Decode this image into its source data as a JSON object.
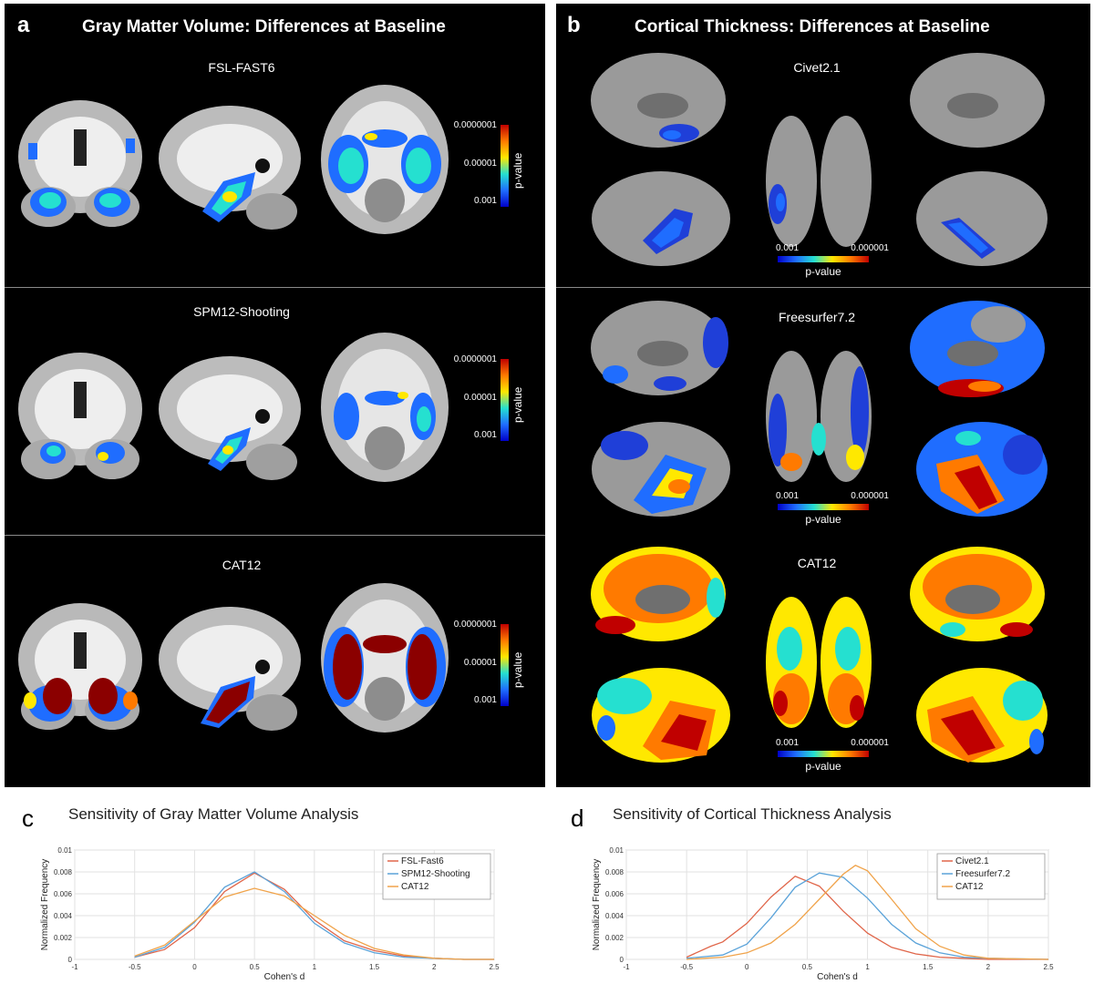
{
  "panel_a": {
    "label": "a",
    "title": "Gray Matter Volume: Differences at Baseline",
    "rows": [
      "FSL-FAST6",
      "SPM12-Shooting",
      "CAT12"
    ],
    "colorbar": {
      "ticks": [
        "0.0000001",
        "0.00001",
        "0.001"
      ],
      "label": "p-value"
    }
  },
  "panel_b": {
    "label": "b",
    "title": "Cortical Thickness: Differences at Baseline",
    "rows": [
      "Civet2.1",
      "Freesurfer7.2",
      "CAT12"
    ],
    "colorbar": {
      "low": "0.001",
      "high": "0.000001",
      "label": "p-value"
    }
  },
  "colors": {
    "significance_scale": [
      "#0000c8",
      "#1f6dff",
      "#25e0d0",
      "#ffe800",
      "#ff7a00",
      "#c00000"
    ],
    "brain_gray": "#9a9a9a"
  },
  "chart_data": [
    {
      "panel_label": "c",
      "type": "line",
      "title": "Sensitivity of Gray Matter Volume Analysis",
      "xlabel": "Cohen's d",
      "ylabel": "Normalized Frequency",
      "xlim": [
        -1,
        2.5
      ],
      "ylim": [
        0,
        0.01
      ],
      "xticks": [
        "-1",
        "-0.5",
        "0",
        "0.5",
        "1",
        "1.5",
        "2",
        "2.5"
      ],
      "yticks": [
        "0",
        "0.002",
        "0.004",
        "0.006",
        "0.008",
        "0.01"
      ],
      "grid": true,
      "legend_position": "top-right",
      "series": [
        {
          "name": "FSL-Fast6",
          "color": "#e0664a",
          "x": [
            -0.5,
            -0.25,
            0,
            0.25,
            0.5,
            0.75,
            1,
            1.25,
            1.5,
            1.75,
            2,
            2.25,
            2.5
          ],
          "y": [
            0.0002,
            0.0009,
            0.0029,
            0.0062,
            0.0079,
            0.0064,
            0.0036,
            0.0017,
            0.0008,
            0.0003,
            0.0001,
            0.0,
            0.0
          ]
        },
        {
          "name": "SPM12-Shooting",
          "color": "#5ba3d9",
          "x": [
            -0.5,
            -0.25,
            0,
            0.25,
            0.5,
            0.75,
            1,
            1.25,
            1.5,
            1.75,
            2,
            2.25,
            2.5
          ],
          "y": [
            0.0002,
            0.0011,
            0.0034,
            0.0066,
            0.008,
            0.0062,
            0.0033,
            0.0015,
            0.0006,
            0.0002,
            0.0001,
            0.0,
            0.0
          ]
        },
        {
          "name": "CAT12",
          "color": "#f0a34a",
          "x": [
            -0.5,
            -0.25,
            0,
            0.25,
            0.5,
            0.75,
            1,
            1.25,
            1.5,
            1.75,
            2,
            2.25,
            2.5
          ],
          "y": [
            0.0003,
            0.0013,
            0.0035,
            0.0057,
            0.0065,
            0.0058,
            0.004,
            0.0022,
            0.001,
            0.0004,
            0.0001,
            0.0,
            0.0
          ]
        }
      ]
    },
    {
      "panel_label": "d",
      "type": "line",
      "title": "Sensitivity of Cortical Thickness Analysis",
      "xlabel": "Cohen's d",
      "ylabel": "Normalized Frequency",
      "xlim": [
        -1,
        2.5
      ],
      "ylim": [
        0,
        0.01
      ],
      "xticks": [
        "-1",
        "-0.5",
        "0",
        "0.5",
        "1",
        "1.5",
        "2",
        "2.5"
      ],
      "yticks": [
        "0",
        "0.002",
        "0.004",
        "0.006",
        "0.008",
        "0.01"
      ],
      "grid": true,
      "legend_position": "top-right",
      "series": [
        {
          "name": "Civet2.1",
          "color": "#e0664a",
          "x": [
            -0.5,
            -0.3,
            -0.2,
            0,
            0.2,
            0.4,
            0.6,
            0.8,
            1,
            1.2,
            1.4,
            1.6,
            1.8,
            2,
            2.5
          ],
          "y": [
            0.0002,
            0.0012,
            0.0016,
            0.0033,
            0.0057,
            0.0076,
            0.0067,
            0.0044,
            0.0024,
            0.0011,
            0.0005,
            0.0002,
            0.0001,
            0.0,
            0.0
          ]
        },
        {
          "name": "Freesurfer7.2",
          "color": "#5ba3d9",
          "x": [
            -0.5,
            -0.2,
            0,
            0.2,
            0.4,
            0.6,
            0.8,
            1,
            1.2,
            1.4,
            1.6,
            1.8,
            2,
            2.5
          ],
          "y": [
            0.0001,
            0.0004,
            0.0014,
            0.0038,
            0.0066,
            0.0079,
            0.0075,
            0.0056,
            0.0032,
            0.0015,
            0.0006,
            0.0002,
            0.0001,
            0.0
          ]
        },
        {
          "name": "CAT12",
          "color": "#f0a34a",
          "x": [
            -0.5,
            -0.2,
            0,
            0.2,
            0.4,
            0.6,
            0.8,
            0.9,
            1,
            1.2,
            1.4,
            1.6,
            1.8,
            2,
            2.5
          ],
          "y": [
            0.0,
            0.0002,
            0.0006,
            0.0015,
            0.0032,
            0.0055,
            0.0078,
            0.0086,
            0.0081,
            0.0055,
            0.0028,
            0.0012,
            0.0004,
            0.0001,
            0.0
          ]
        }
      ]
    }
  ]
}
